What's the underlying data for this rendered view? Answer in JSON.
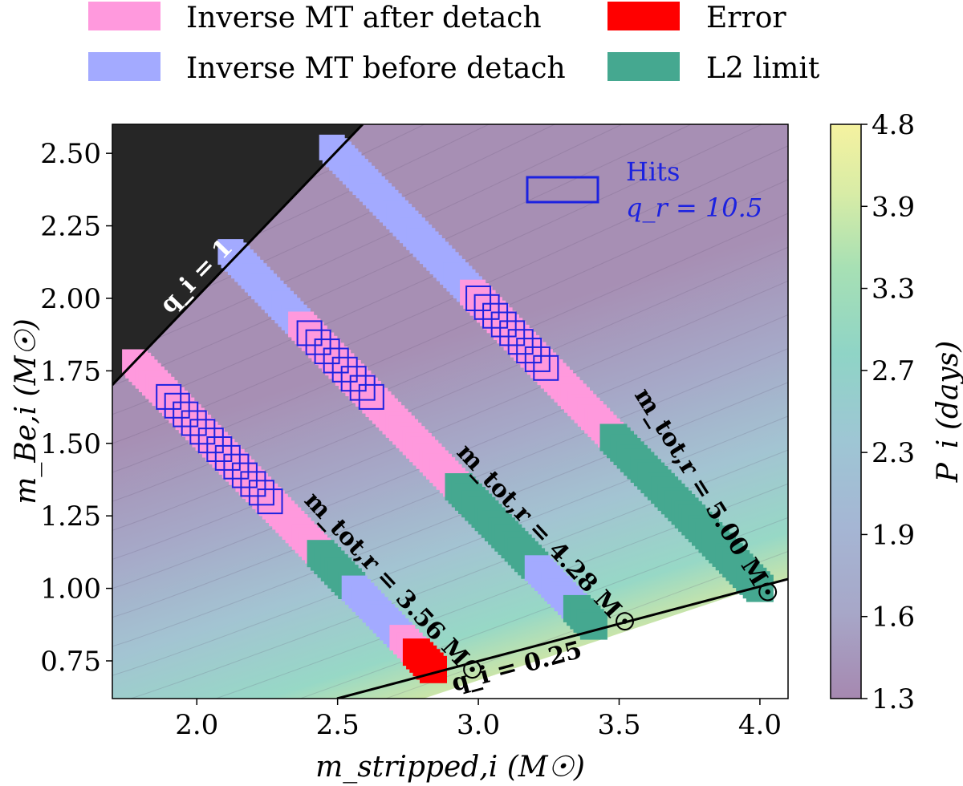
{
  "chart_data": {
    "type": "heatmap",
    "xlabel": "m_stripped,i (M☉)",
    "ylabel": "m_Be,i (M☉)",
    "colorbar_label": "P_i (days)",
    "xlim": [
      1.7,
      4.1
    ],
    "ylim": [
      0.62,
      2.6
    ],
    "x_ticks": [
      "2.0",
      "2.5",
      "3.0",
      "3.5",
      "4.0"
    ],
    "y_ticks": [
      "0.75",
      "1.00",
      "1.25",
      "1.50",
      "1.75",
      "2.00",
      "2.25",
      "2.50"
    ],
    "colorbar_range": [
      1.3,
      4.8
    ],
    "colorbar_ticks": [
      "1.3",
      "1.6",
      "1.9",
      "2.3",
      "2.7",
      "3.3",
      "3.9",
      "4.8"
    ],
    "colors": {
      "inverse_after": "#ff99dd",
      "inverse_before": "#a3aaff",
      "error": "#ff0000",
      "l2": "#45a890",
      "hits_border": "#1c22e0",
      "forbidden": "#262626"
    },
    "legend": [
      {
        "label": "Inverse MT after detach",
        "color": "#ff99dd"
      },
      {
        "label": "Inverse MT before detach",
        "color": "#a3aaff"
      },
      {
        "label": "Error",
        "color": "#ff0000"
      },
      {
        "label": "L2 limit",
        "color": "#45a890"
      }
    ],
    "hits_legend": {
      "line1": "Hits",
      "line2": "q_r = 10.5"
    },
    "annotations": {
      "q_upper": "q_i = 1",
      "q_lower": "q_i = 0.25",
      "mtot_1": "m_tot,r = 3.56 M☉",
      "mtot_2": "m_tot,r = 4.28 M☉",
      "mtot_3": "m_tot,r = 5.00 M☉"
    },
    "series": [
      {
        "name": "m_tot,r = 3.56",
        "segments": [
          {
            "status": "inverse_after",
            "x_from": 1.78,
            "x_to": 2.29
          },
          {
            "status": "inverse_after",
            "x_from": 2.29,
            "x_to": 2.43
          },
          {
            "status": "l2",
            "x_from": 2.44,
            "x_to": 2.55
          },
          {
            "status": "inverse_before",
            "x_from": 2.56,
            "x_to": 2.72
          },
          {
            "status": "inverse_after",
            "x_from": 2.73,
            "x_to": 2.77
          },
          {
            "status": "error",
            "x_from": 2.78,
            "x_to": 2.84
          }
        ],
        "hits_from": 1.9,
        "hits_to": 2.26
      },
      {
        "name": "m_tot,r = 4.28",
        "segments": [
          {
            "status": "inverse_before",
            "x_from": 2.12,
            "x_to": 2.37
          },
          {
            "status": "inverse_after",
            "x_from": 2.37,
            "x_to": 2.92
          },
          {
            "status": "l2",
            "x_from": 2.93,
            "x_to": 3.2
          },
          {
            "status": "inverse_before",
            "x_from": 3.21,
            "x_to": 3.28
          },
          {
            "status": "inverse_before",
            "x_from": 3.29,
            "x_to": 3.34
          },
          {
            "status": "l2",
            "x_from": 3.35,
            "x_to": 3.41
          }
        ],
        "hits_from": 2.4,
        "hits_to": 2.62
      },
      {
        "name": "m_tot,r = 5.00",
        "segments": [
          {
            "status": "inverse_before",
            "x_from": 2.48,
            "x_to": 2.98
          },
          {
            "status": "inverse_after",
            "x_from": 2.98,
            "x_to": 3.47
          },
          {
            "status": "l2",
            "x_from": 3.48,
            "x_to": 4.0
          }
        ],
        "hits_from": 3.0,
        "hits_to": 3.24
      }
    ]
  }
}
